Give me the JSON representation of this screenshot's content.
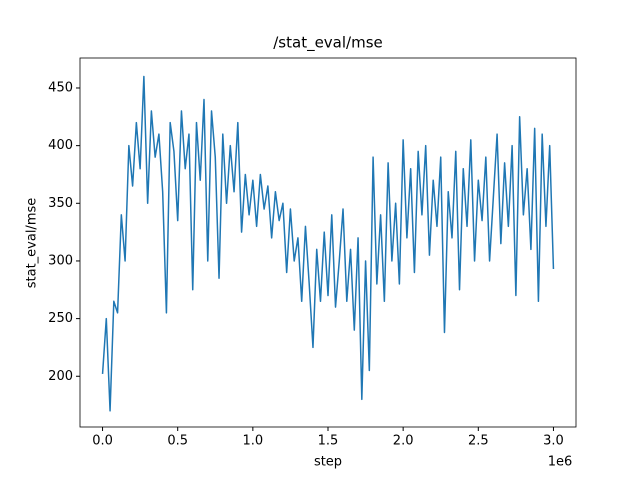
{
  "chart_data": {
    "type": "line",
    "title": "/stat_eval/mse",
    "x_label": "step",
    "y_label": "stat_eval/mse",
    "x_offset_label": "1e6",
    "color": "#1f77b4",
    "x": [
      0,
      25000,
      50000,
      75000,
      100000,
      125000,
      150000,
      175000,
      200000,
      225000,
      250000,
      275000,
      300000,
      325000,
      350000,
      375000,
      400000,
      425000,
      450000,
      475000,
      500000,
      525000,
      550000,
      575000,
      600000,
      625000,
      650000,
      675000,
      700000,
      725000,
      750000,
      775000,
      800000,
      825000,
      850000,
      875000,
      900000,
      925000,
      950000,
      975000,
      1000000,
      1025000,
      1050000,
      1075000,
      1100000,
      1125000,
      1150000,
      1175000,
      1200000,
      1225000,
      1250000,
      1275000,
      1300000,
      1325000,
      1350000,
      1375000,
      1400000,
      1425000,
      1450000,
      1475000,
      1500000,
      1525000,
      1550000,
      1575000,
      1600000,
      1625000,
      1650000,
      1675000,
      1700000,
      1725000,
      1750000,
      1775000,
      1800000,
      1825000,
      1850000,
      1875000,
      1900000,
      1925000,
      1950000,
      1975000,
      2000000,
      2025000,
      2050000,
      2075000,
      2100000,
      2125000,
      2150000,
      2175000,
      2200000,
      2225000,
      2250000,
      2275000,
      2300000,
      2325000,
      2350000,
      2375000,
      2400000,
      2425000,
      2450000,
      2475000,
      2500000,
      2525000,
      2550000,
      2575000,
      2600000,
      2625000,
      2650000,
      2675000,
      2700000,
      2725000,
      2750000,
      2775000,
      2800000,
      2825000,
      2850000,
      2875000,
      2900000,
      2925000,
      2950000,
      2975000,
      3000000
    ],
    "values": [
      202,
      250,
      170,
      265,
      255,
      340,
      300,
      400,
      365,
      420,
      380,
      460,
      350,
      430,
      390,
      410,
      360,
      255,
      420,
      395,
      335,
      430,
      380,
      410,
      275,
      420,
      370,
      440,
      300,
      430,
      390,
      285,
      410,
      350,
      400,
      360,
      420,
      325,
      375,
      340,
      370,
      330,
      375,
      345,
      365,
      320,
      360,
      335,
      350,
      290,
      345,
      300,
      320,
      265,
      330,
      280,
      225,
      310,
      265,
      325,
      270,
      340,
      260,
      300,
      345,
      265,
      310,
      240,
      320,
      180,
      300,
      205,
      390,
      280,
      340,
      265,
      385,
      300,
      350,
      280,
      405,
      320,
      380,
      290,
      395,
      340,
      400,
      305,
      370,
      330,
      390,
      238,
      360,
      320,
      395,
      275,
      380,
      330,
      405,
      300,
      370,
      335,
      390,
      300,
      355,
      410,
      315,
      385,
      330,
      400,
      270,
      425,
      340,
      380,
      310,
      415,
      265,
      410,
      330,
      400,
      293
    ],
    "xlim": [
      -150000,
      3150000
    ],
    "xticks": [
      {
        "value": 0,
        "label": "0.0"
      },
      {
        "value": 500000,
        "label": "0.5"
      },
      {
        "value": 1000000,
        "label": "1.0"
      },
      {
        "value": 1500000,
        "label": "1.5"
      },
      {
        "value": 2000000,
        "label": "2.0"
      },
      {
        "value": 2500000,
        "label": "2.5"
      },
      {
        "value": 3000000,
        "label": "3.0"
      }
    ],
    "ylim": [
      156,
      476
    ],
    "yticks": [
      200,
      250,
      300,
      350,
      400,
      450
    ]
  }
}
